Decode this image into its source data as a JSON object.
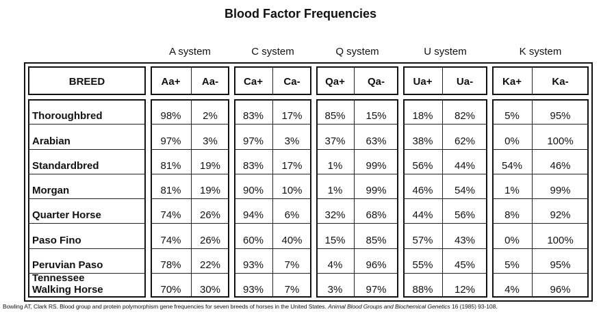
{
  "title": "Blood Factor Frequencies",
  "systems": [
    "A system",
    "C system",
    "Q system",
    "U system",
    "K system"
  ],
  "table": {
    "header": [
      "BREED",
      "Aa+",
      "Aa-",
      "Ca+",
      "Ca-",
      "Qa+",
      "Qa-",
      "Ua+",
      "Ua-",
      "Ka+",
      "Ka-"
    ],
    "rows": [
      [
        "Thoroughbred",
        "98%",
        "2%",
        "83%",
        "17%",
        "85%",
        "15%",
        "18%",
        "82%",
        "5%",
        "95%"
      ],
      [
        "Arabian",
        "97%",
        "3%",
        "97%",
        "3%",
        "37%",
        "63%",
        "38%",
        "62%",
        "0%",
        "100%"
      ],
      [
        "Standardbred",
        "81%",
        "19%",
        "83%",
        "17%",
        "1%",
        "99%",
        "56%",
        "44%",
        "54%",
        "46%"
      ],
      [
        "Morgan",
        "81%",
        "19%",
        "90%",
        "10%",
        "1%",
        "99%",
        "46%",
        "54%",
        "1%",
        "99%"
      ],
      [
        "Quarter Horse",
        "74%",
        "26%",
        "94%",
        "6%",
        "32%",
        "68%",
        "44%",
        "56%",
        "8%",
        "92%"
      ],
      [
        "Paso Fino",
        "74%",
        "26%",
        "60%",
        "40%",
        "15%",
        "85%",
        "57%",
        "43%",
        "0%",
        "100%"
      ],
      [
        "Peruvian Paso",
        "78%",
        "22%",
        "93%",
        "7%",
        "4%",
        "96%",
        "55%",
        "45%",
        "5%",
        "95%"
      ],
      [
        "Tennessee Walking Horse",
        "70%",
        "30%",
        "93%",
        "7%",
        "3%",
        "97%",
        "88%",
        "12%",
        "4%",
        "96%"
      ]
    ]
  },
  "citation": {
    "text": "Bowling AT, Clark RS. Blood group and protein polymorphism gene frequencies for seven breeds of horses in the United States.",
    "journal": "Animal Blood Groups and Biochemical Genetics",
    "details": "16 (1985) 93-108."
  }
}
